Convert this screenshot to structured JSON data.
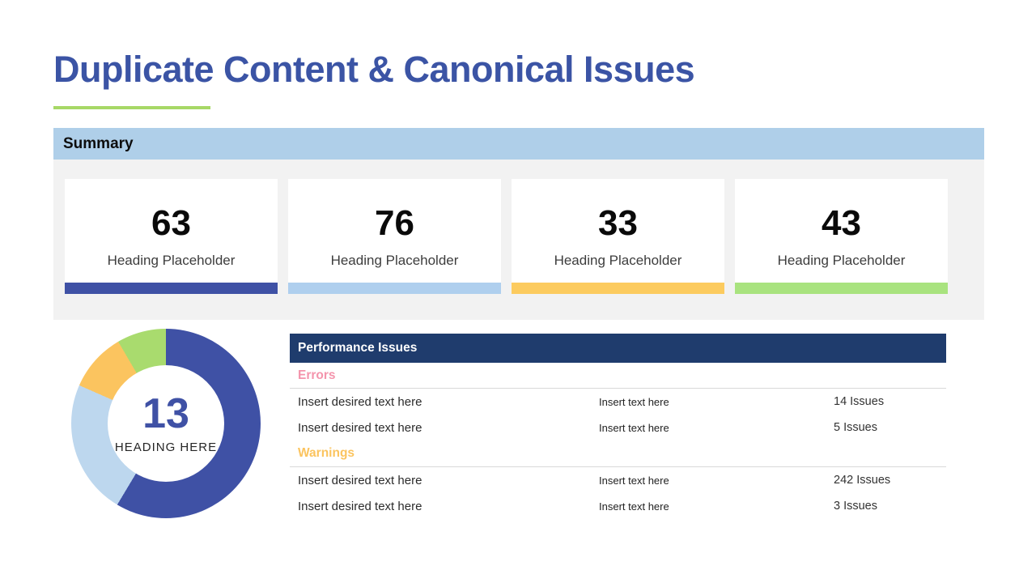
{
  "slide": {
    "title": "Duplicate Content & Canonical Issues",
    "title_color": "#3B54A5",
    "underline_color": "#A7D866"
  },
  "summary": {
    "header": "Summary",
    "header_bg": "#AFCFE9",
    "panel_bg": "#F2F2F2",
    "cards": [
      {
        "value": "63",
        "label": "Heading Placeholder",
        "bar_color": "#3F51A5"
      },
      {
        "value": "76",
        "label": "Heading Placeholder",
        "bar_color": "#AFCFEE"
      },
      {
        "value": "33",
        "label": "Heading Placeholder",
        "bar_color": "#FCCB5F"
      },
      {
        "value": "43",
        "label": "Heading Placeholder",
        "bar_color": "#A9E37F"
      }
    ]
  },
  "chart_data": {
    "type": "pie",
    "subtype": "donut",
    "center_value": "13",
    "center_label": "HEADING HERE",
    "center_value_color": "#3F51A5",
    "legend": "none",
    "segments": [
      {
        "name": "segment-dark-blue",
        "color": "#3F51A5",
        "percent": 58.6
      },
      {
        "name": "segment-light-blue",
        "color": "#BDD7EE",
        "percent": 23.0
      },
      {
        "name": "segment-yellow",
        "color": "#FBC45F",
        "percent": 10.0
      },
      {
        "name": "segment-green",
        "color": "#A9DB6E",
        "percent": 8.4
      }
    ]
  },
  "issues_table": {
    "header": "Performance Issues",
    "header_bg": "#1F3C6D",
    "sections": [
      {
        "name": "Errors",
        "color": "#F494AC",
        "rows": [
          {
            "description": "Insert desired text here",
            "note": "Insert text here",
            "count": "14 Issues"
          },
          {
            "description": "Insert desired text here",
            "note": "Insert text here",
            "count": "5 Issues"
          }
        ]
      },
      {
        "name": "Warnings",
        "color": "#FBC45F",
        "rows": [
          {
            "description": "Insert desired text here",
            "note": "Insert text here",
            "count": "242 Issues"
          },
          {
            "description": "Insert desired text here",
            "note": "Insert text here",
            "count": "3 Issues"
          }
        ]
      }
    ]
  }
}
